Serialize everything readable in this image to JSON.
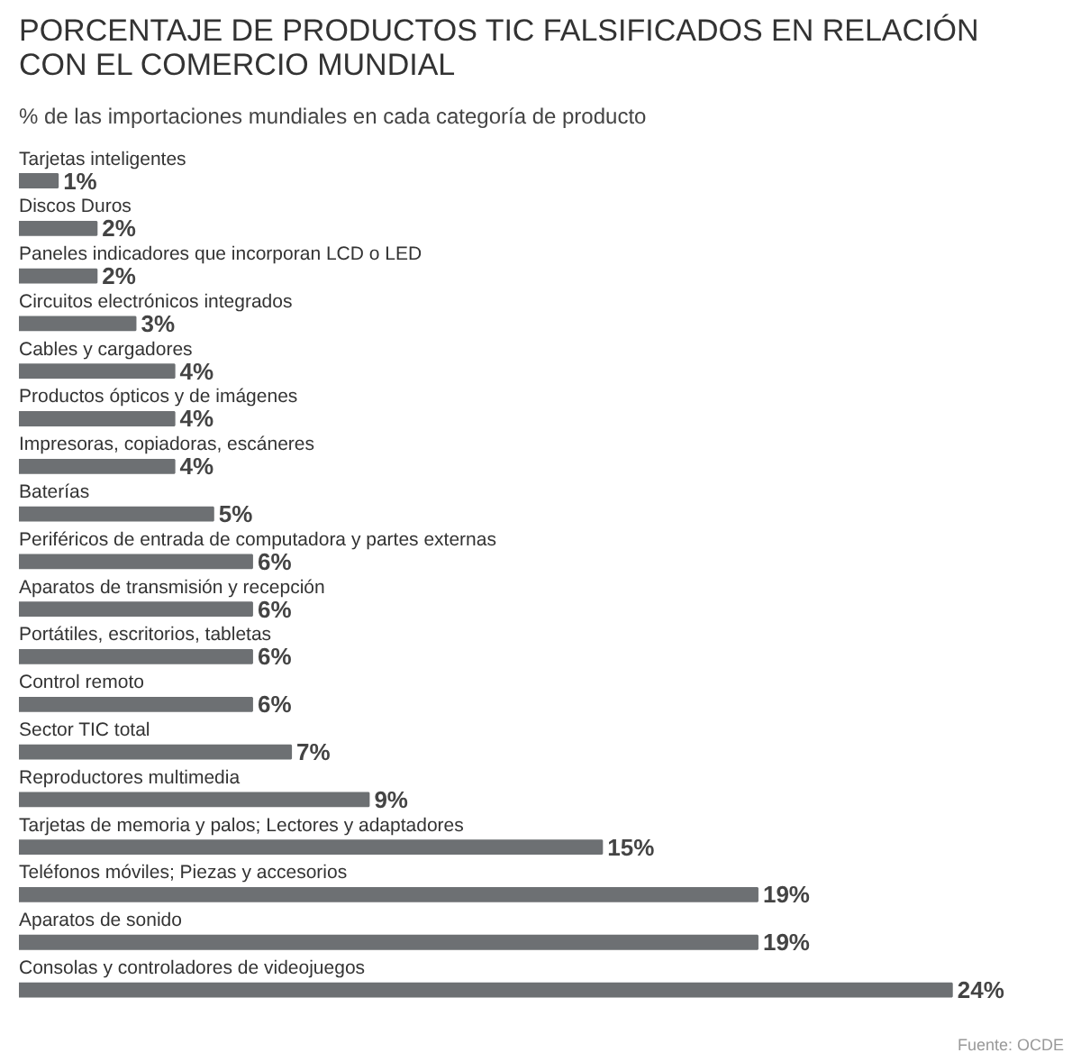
{
  "chart_data": {
    "type": "bar",
    "orientation": "horizontal",
    "title": "PORCENTAJE DE PRODUCTOS TIC FALSIFICADOS EN RELACIÓN CON EL COMERCIO MUNDIAL",
    "subtitle": "% de las importaciones mundiales en cada categoría de producto",
    "categories": [
      "Tarjetas inteligentes",
      "Discos Duros",
      "Paneles indicadores que incorporan LCD o LED",
      "Circuitos electrónicos integrados",
      "Cables y cargadores",
      "Productos ópticos y de imágenes",
      "Impresoras, copiadoras, escáneres",
      "Baterías",
      "Periféricos de entrada de computadora y partes externas",
      "Aparatos de transmisión y recepción",
      "Portátiles, escritorios, tabletas",
      "Control remoto",
      "Sector TIC total",
      "Reproductores multimedia",
      "Tarjetas de memoria y palos; Lectores y adaptadores",
      "Teléfonos móviles; Piezas y accesorios",
      "Aparatos de sonido",
      "Consolas y controladores de videojuegos"
    ],
    "values": [
      1,
      2,
      2,
      3,
      4,
      4,
      4,
      5,
      6,
      6,
      6,
      6,
      7,
      9,
      15,
      19,
      19,
      24
    ],
    "value_labels": [
      "1%",
      "2%",
      "2%",
      "3%",
      "4%",
      "4%",
      "4%",
      "5%",
      "6%",
      "6%",
      "6%",
      "6%",
      "7%",
      "9%",
      "15%",
      "19%",
      "19%",
      "24%"
    ],
    "color": "#6d7073",
    "grid": false,
    "tick_labels": false,
    "annotations": [
      "Fuente: OCDE"
    ]
  }
}
